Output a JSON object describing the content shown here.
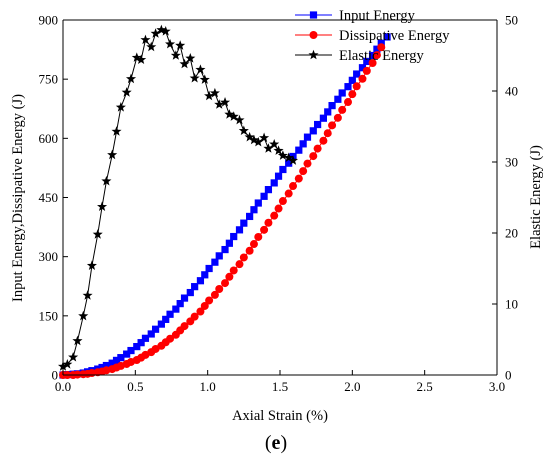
{
  "chart_data": {
    "type": "line",
    "panel_label": {
      "open": "(",
      "letter": "e",
      "close": ")"
    },
    "xlabel": "Axial Strain (%)",
    "ylabel_left": "Input Energy,Dissipative Energy (J)",
    "ylabel_right": "Elastic Energy (J)",
    "xlim": [
      0,
      3.0
    ],
    "ylim_left": [
      0,
      900
    ],
    "ylim_right": [
      0,
      50
    ],
    "x_ticks": [
      "0.0",
      "0.5",
      "1.0",
      "1.5",
      "2.0",
      "2.5",
      "3.0"
    ],
    "y_left_ticks": [
      "0",
      "150",
      "300",
      "450",
      "600",
      "750",
      "900"
    ],
    "y_right_ticks": [
      "0",
      "10",
      "20",
      "30",
      "40",
      "50"
    ],
    "grid": false,
    "legend_position": "top-right",
    "series": [
      {
        "name": "Input Energy",
        "color": "#0000ff",
        "marker": "square",
        "axis": "left",
        "points": [
          [
            0.0,
            0
          ],
          [
            0.03,
            1
          ],
          [
            0.07,
            2
          ],
          [
            0.1,
            3
          ],
          [
            0.14,
            5
          ],
          [
            0.17,
            8
          ],
          [
            0.2,
            11
          ],
          [
            0.24,
            15
          ],
          [
            0.27,
            19
          ],
          [
            0.3,
            24
          ],
          [
            0.34,
            30
          ],
          [
            0.37,
            37
          ],
          [
            0.4,
            44
          ],
          [
            0.44,
            53
          ],
          [
            0.47,
            62
          ],
          [
            0.51,
            72
          ],
          [
            0.54,
            82
          ],
          [
            0.57,
            93
          ],
          [
            0.61,
            104
          ],
          [
            0.64,
            116
          ],
          [
            0.68,
            129
          ],
          [
            0.71,
            141
          ],
          [
            0.74,
            154
          ],
          [
            0.78,
            167
          ],
          [
            0.81,
            181
          ],
          [
            0.84,
            195
          ],
          [
            0.88,
            209
          ],
          [
            0.91,
            224
          ],
          [
            0.95,
            239
          ],
          [
            0.98,
            254
          ],
          [
            1.01,
            270
          ],
          [
            1.05,
            286
          ],
          [
            1.08,
            302
          ],
          [
            1.12,
            318
          ],
          [
            1.15,
            334
          ],
          [
            1.18,
            351
          ],
          [
            1.22,
            368
          ],
          [
            1.25,
            385
          ],
          [
            1.29,
            402
          ],
          [
            1.32,
            419
          ],
          [
            1.35,
            436
          ],
          [
            1.39,
            453
          ],
          [
            1.42,
            470
          ],
          [
            1.46,
            487
          ],
          [
            1.49,
            504
          ],
          [
            1.52,
            521
          ],
          [
            1.56,
            537
          ],
          [
            1.59,
            554
          ],
          [
            1.63,
            570
          ],
          [
            1.66,
            586
          ],
          [
            1.69,
            603
          ],
          [
            1.73,
            619
          ],
          [
            1.76,
            635
          ],
          [
            1.8,
            651
          ],
          [
            1.83,
            667
          ],
          [
            1.86,
            683
          ],
          [
            1.9,
            699
          ],
          [
            1.93,
            715
          ],
          [
            1.97,
            731
          ],
          [
            2.0,
            747
          ],
          [
            2.03,
            763
          ],
          [
            2.07,
            779
          ],
          [
            2.1,
            795
          ],
          [
            2.14,
            810
          ],
          [
            2.17,
            826
          ],
          [
            2.2,
            841
          ],
          [
            2.24,
            857
          ]
        ]
      },
      {
        "name": "Dissipative Energy",
        "color": "#ff0000",
        "marker": "circle",
        "axis": "left",
        "points": [
          [
            0.0,
            0
          ],
          [
            0.03,
            0
          ],
          [
            0.07,
            0
          ],
          [
            0.1,
            1
          ],
          [
            0.14,
            2
          ],
          [
            0.17,
            3
          ],
          [
            0.2,
            5
          ],
          [
            0.24,
            7
          ],
          [
            0.27,
            9
          ],
          [
            0.3,
            12
          ],
          [
            0.34,
            15
          ],
          [
            0.37,
            19
          ],
          [
            0.4,
            23
          ],
          [
            0.44,
            28
          ],
          [
            0.47,
            33
          ],
          [
            0.51,
            38
          ],
          [
            0.54,
            44
          ],
          [
            0.57,
            51
          ],
          [
            0.61,
            58
          ],
          [
            0.64,
            66
          ],
          [
            0.68,
            74
          ],
          [
            0.71,
            83
          ],
          [
            0.74,
            92
          ],
          [
            0.78,
            102
          ],
          [
            0.81,
            113
          ],
          [
            0.84,
            124
          ],
          [
            0.88,
            136
          ],
          [
            0.91,
            148
          ],
          [
            0.95,
            161
          ],
          [
            0.98,
            175
          ],
          [
            1.01,
            189
          ],
          [
            1.05,
            203
          ],
          [
            1.08,
            218
          ],
          [
            1.12,
            233
          ],
          [
            1.15,
            249
          ],
          [
            1.18,
            265
          ],
          [
            1.22,
            281
          ],
          [
            1.25,
            298
          ],
          [
            1.29,
            315
          ],
          [
            1.32,
            332
          ],
          [
            1.35,
            350
          ],
          [
            1.39,
            368
          ],
          [
            1.42,
            386
          ],
          [
            1.46,
            404
          ],
          [
            1.49,
            422
          ],
          [
            1.52,
            441
          ],
          [
            1.56,
            460
          ],
          [
            1.59,
            479
          ],
          [
            1.63,
            498
          ],
          [
            1.66,
            517
          ],
          [
            1.69,
            536
          ],
          [
            1.73,
            555
          ],
          [
            1.76,
            574
          ],
          [
            1.8,
            594
          ],
          [
            1.83,
            613
          ],
          [
            1.86,
            633
          ],
          [
            1.9,
            652
          ],
          [
            1.93,
            672
          ],
          [
            1.97,
            692
          ],
          [
            2.0,
            712
          ],
          [
            2.03,
            732
          ],
          [
            2.07,
            751
          ],
          [
            2.1,
            771
          ],
          [
            2.14,
            791
          ],
          [
            2.17,
            811
          ],
          [
            2.2,
            831
          ]
        ]
      },
      {
        "name": "Elastic Energy",
        "color": "#000000",
        "marker": "star",
        "axis": "right",
        "points": [
          [
            0.0,
            1.2
          ],
          [
            0.03,
            1.5
          ],
          [
            0.07,
            2.5
          ],
          [
            0.1,
            4.8
          ],
          [
            0.14,
            8.3
          ],
          [
            0.17,
            11.2
          ],
          [
            0.2,
            15.4
          ],
          [
            0.24,
            19.8
          ],
          [
            0.27,
            23.7
          ],
          [
            0.3,
            27.3
          ],
          [
            0.34,
            31.0
          ],
          [
            0.37,
            34.3
          ],
          [
            0.4,
            37.7
          ],
          [
            0.44,
            39.8
          ],
          [
            0.47,
            41.7
          ],
          [
            0.51,
            44.7
          ],
          [
            0.54,
            44.4
          ],
          [
            0.57,
            47.2
          ],
          [
            0.61,
            46.2
          ],
          [
            0.64,
            48.1
          ],
          [
            0.68,
            48.6
          ],
          [
            0.71,
            48.4
          ],
          [
            0.74,
            46.6
          ],
          [
            0.78,
            45.0
          ],
          [
            0.81,
            46.4
          ],
          [
            0.84,
            43.8
          ],
          [
            0.88,
            44.6
          ],
          [
            0.91,
            41.8
          ],
          [
            0.95,
            43.0
          ],
          [
            0.98,
            41.6
          ],
          [
            1.01,
            39.3
          ],
          [
            1.05,
            39.7
          ],
          [
            1.08,
            38.1
          ],
          [
            1.12,
            38.4
          ],
          [
            1.15,
            36.7
          ],
          [
            1.18,
            36.4
          ],
          [
            1.22,
            35.9
          ],
          [
            1.25,
            34.4
          ],
          [
            1.29,
            33.5
          ],
          [
            1.32,
            33.1
          ],
          [
            1.35,
            32.8
          ],
          [
            1.39,
            33.4
          ],
          [
            1.42,
            31.9
          ],
          [
            1.46,
            32.5
          ],
          [
            1.49,
            31.6
          ],
          [
            1.52,
            30.9
          ],
          [
            1.56,
            30.6
          ],
          [
            1.59,
            30.2
          ]
        ]
      }
    ]
  }
}
